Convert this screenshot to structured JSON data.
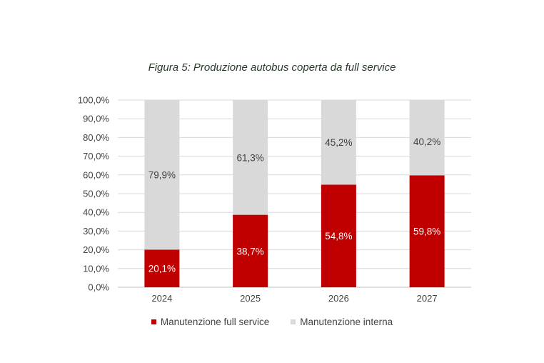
{
  "chart_data": {
    "type": "bar",
    "stacked": true,
    "title": "Figura 5: Produzione autobus coperta da full service",
    "categories": [
      "2024",
      "2025",
      "2026",
      "2027"
    ],
    "series": [
      {
        "name": "Manutenzione full service",
        "values": [
          20.1,
          38.7,
          54.8,
          59.8
        ],
        "labels": [
          "20,1%",
          "38,7%",
          "54,8%",
          "59,8%"
        ],
        "color": "#c00000"
      },
      {
        "name": "Manutenzione interna",
        "values": [
          79.9,
          61.3,
          45.2,
          40.2
        ],
        "labels": [
          "79,9%",
          "61,3%",
          "45,2%",
          "40,2%"
        ],
        "color": "#d9d9d9"
      }
    ],
    "ylim": [
      0,
      100
    ],
    "yticks": [
      "0,0%",
      "10,0%",
      "20,0%",
      "30,0%",
      "40,0%",
      "50,0%",
      "60,0%",
      "70,0%",
      "80,0%",
      "90,0%",
      "100,0%"
    ],
    "grid": true,
    "legend": "bottom"
  }
}
